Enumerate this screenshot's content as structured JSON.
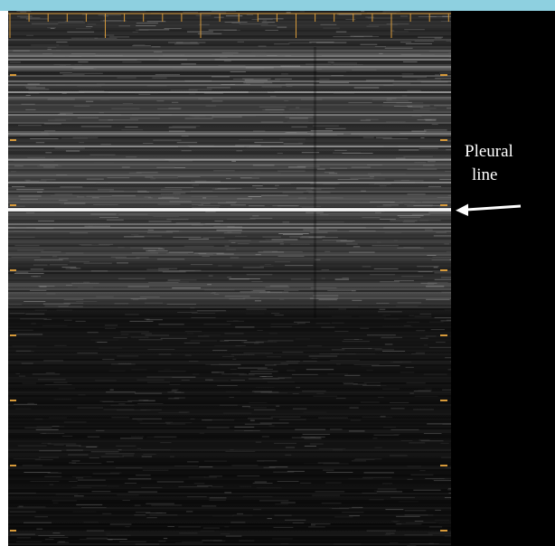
{
  "annotation": {
    "line1": "Pleural",
    "line2": "line"
  },
  "colors": {
    "top_band": "#8ed0e0",
    "tick_orange": "#d79a3a",
    "annotation_text": "#ffffff",
    "arrow": "#ffffff"
  },
  "icons": {
    "pointer": "left-arrow-icon"
  }
}
